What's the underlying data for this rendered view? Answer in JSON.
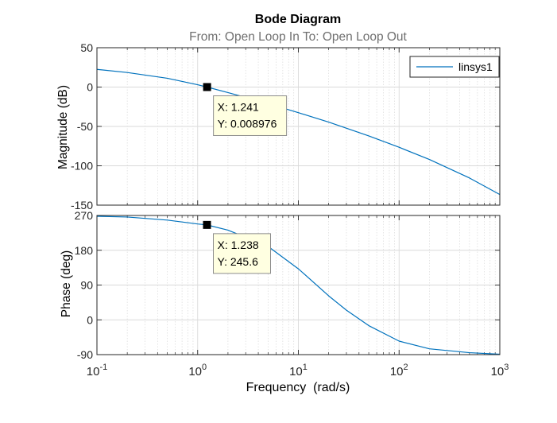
{
  "chart_data": {
    "type": "line",
    "title": "Bode Diagram",
    "subtitle": "From: Open Loop In  To: Open Loop Out",
    "xlabel": "Frequency  (rad/s)",
    "xscale": "log",
    "xlim": [
      0.1,
      1000
    ],
    "x_ticks": [
      {
        "base": "10",
        "exp": "-1"
      },
      {
        "base": "10",
        "exp": "0"
      },
      {
        "base": "10",
        "exp": "1"
      },
      {
        "base": "10",
        "exp": "2"
      },
      {
        "base": "10",
        "exp": "3"
      }
    ],
    "legend": {
      "entries": [
        "linsys1"
      ],
      "placement": "top-right"
    },
    "grid": true,
    "panels": [
      {
        "name": "magnitude",
        "ylabel": "Magnitude (dB)",
        "ylim": [
          -150,
          50
        ],
        "yticks": [
          "50",
          "0",
          "-50",
          "-100",
          "-150"
        ],
        "series": {
          "name": "linsys1",
          "color": "#0072BD",
          "x": [
            0.1,
            0.2,
            0.5,
            1.0,
            1.241,
            2,
            5,
            10,
            20,
            50,
            100,
            200,
            500,
            1000
          ],
          "y": [
            22.5,
            18.5,
            11.2,
            3.0,
            0.009,
            -7.0,
            -21.0,
            -32.5,
            -44.5,
            -62.0,
            -76.5,
            -92.0,
            -115.5,
            -136.5
          ]
        },
        "datatip": {
          "x": 1.241,
          "y": 0.008976,
          "text_x": "X: 1.241",
          "text_y": "Y: 0.008976"
        }
      },
      {
        "name": "phase",
        "ylabel": "Phase (deg)",
        "ylim": [
          -90,
          270
        ],
        "yticks": [
          "270",
          "180",
          "90",
          "0",
          "-90"
        ],
        "series": {
          "name": "linsys1",
          "color": "#0072BD",
          "x": [
            0.1,
            0.2,
            0.5,
            1.0,
            1.238,
            2,
            5,
            10,
            20,
            30,
            50,
            100,
            200,
            500,
            1000
          ],
          "y": [
            268,
            266,
            258,
            248,
            245.6,
            232,
            190,
            132,
            62,
            25,
            -15,
            -55,
            -75,
            -85,
            -89
          ]
        },
        "datatip": {
          "x": 1.238,
          "y": 245.6,
          "text_x": "X: 1.238",
          "text_y": "Y: 245.6"
        }
      }
    ]
  }
}
